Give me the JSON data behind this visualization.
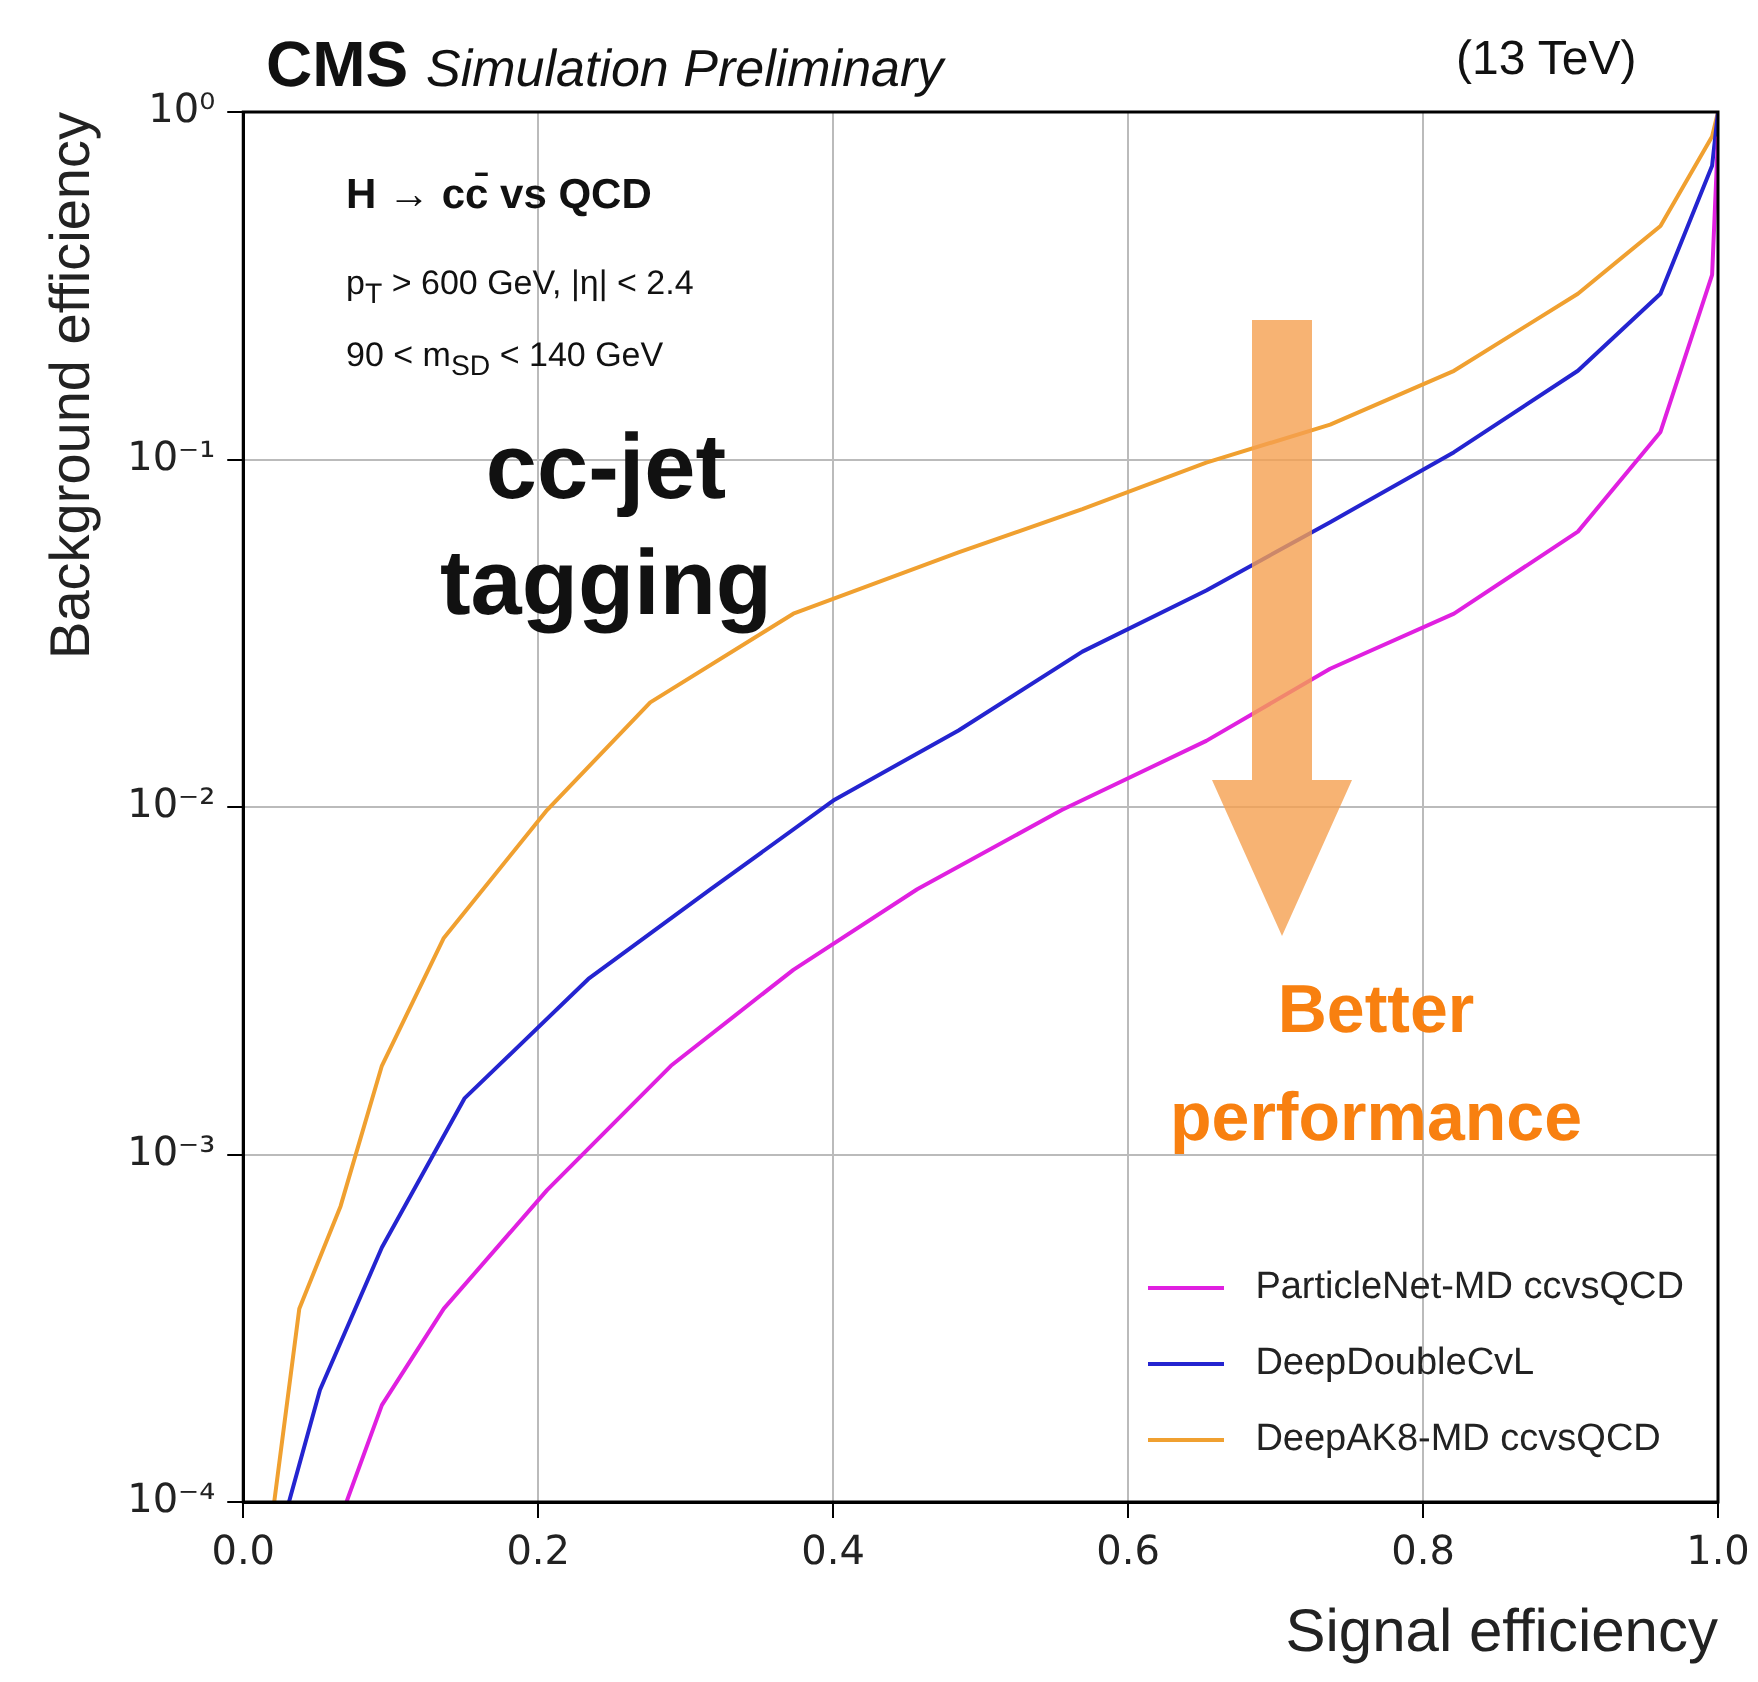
{
  "chart_data": {
    "type": "line",
    "title": "CMS",
    "subtitle": "Simulation Preliminary",
    "xlabel": "Signal efficiency",
    "ylabel": "Background efficiency",
    "annotations": [
      "(13 TeV)",
      "H → cc̄ vs QCD",
      "p$_{T}$ > 600 GeV,   |η| < 2.4",
      "90 < m$_{SD}$ < 140 GeV",
      "cc-jet tagging",
      "Better performance"
    ],
    "xlim": [
      0,
      1
    ],
    "xticks": [
      {
        "value": 0,
        "label": "0.0"
      },
      {
        "value": 0.2,
        "label": "0.2"
      },
      {
        "value": 0.4,
        "label": "0.4"
      },
      {
        "value": 0.6,
        "label": "0.6"
      },
      {
        "value": 0.8,
        "label": "0.8"
      },
      {
        "value": 1,
        "label": "1.0"
      }
    ],
    "ylim": [
      0.0001,
      1
    ],
    "yticks": [
      {
        "value": 0.0001,
        "label": "10⁻⁴"
      },
      {
        "value": 0.001,
        "label": "10⁻³"
      },
      {
        "value": 0.01,
        "label": "10⁻²"
      },
      {
        "value": 0.1,
        "label": "10⁻¹"
      },
      {
        "value": 1,
        "label": "10⁰"
      }
    ],
    "log": "y",
    "grid": true,
    "legend": "bottom right",
    "marker": "none",
    "line_style": "solid",
    "series": [
      {
        "name": "ParticleNet-MD ccvsQCD",
        "color": "#e020e0",
        "x": [
          0.07,
          0.094,
          0.136,
          0.206,
          0.29,
          0.373,
          0.457,
          0.555,
          0.653,
          0.737,
          0.821,
          0.905,
          0.961,
          0.996,
          1
        ],
        "values": [
          0.0001,
          0.00019,
          0.00036,
          0.00079,
          0.0018,
          0.0034,
          0.0058,
          0.0098,
          0.0155,
          0.025,
          0.036,
          0.062,
          0.12,
          0.34,
          0.85
        ]
      },
      {
        "name": "DeepDoubleCvL",
        "color": "#2424d0",
        "x": [
          0.031,
          0.052,
          0.094,
          0.15,
          0.234,
          0.317,
          0.401,
          0.485,
          0.569,
          0.653,
          0.737,
          0.821,
          0.905,
          0.961,
          0.996,
          1
        ],
        "values": [
          0.0001,
          0.00021,
          0.00054,
          0.00145,
          0.0032,
          0.0058,
          0.0105,
          0.0166,
          0.028,
          0.042,
          0.066,
          0.105,
          0.18,
          0.3,
          0.7,
          1
        ]
      },
      {
        "name": "DeepAK8-MD ccvsQCD",
        "color": "#f0a030",
        "x": [
          0.021,
          0.038,
          0.066,
          0.094,
          0.136,
          0.206,
          0.276,
          0.373,
          0.485,
          0.569,
          0.653,
          0.737,
          0.821,
          0.905,
          0.961,
          0.996,
          1
        ],
        "values": [
          0.0001,
          0.00036,
          0.00071,
          0.0018,
          0.0042,
          0.0098,
          0.02,
          0.036,
          0.054,
          0.072,
          0.098,
          0.126,
          0.18,
          0.3,
          0.47,
          0.85,
          1
        ]
      }
    ]
  }
}
